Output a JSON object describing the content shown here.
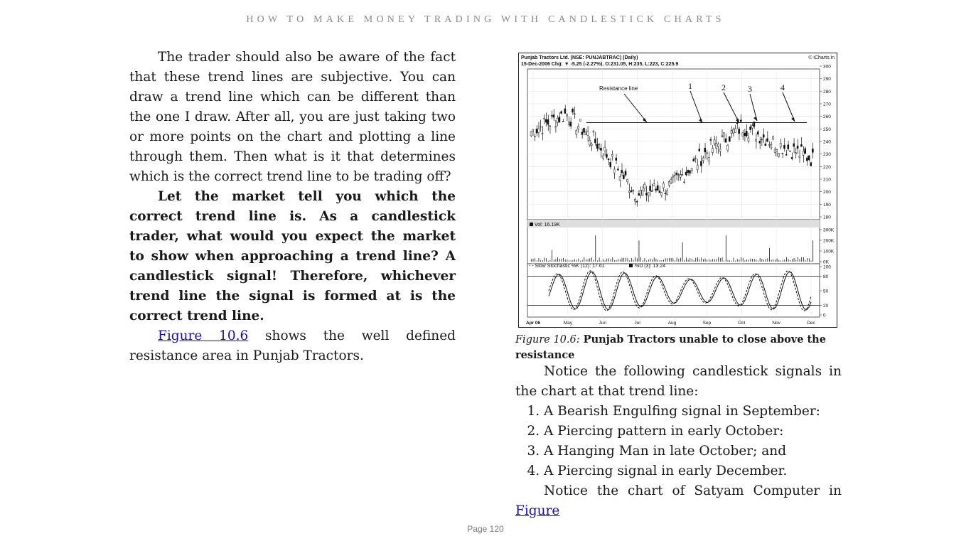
{
  "running_head": "HOW TO MAKE MONEY TRADING WITH CANDLESTICK CHARTS",
  "left_column": {
    "para1": "The trader should also be aware of the fact that these trend lines are subjective. You can draw a trend line which can be different than the one I draw. After all, you are just taking two or more points on the chart and plotting a line through them. Then what is it that determines which is the correct trend line to be trading off?",
    "para2": "Let the market tell you which the correct trend line is. As a candlestick trader, what would you expect the market to show when approaching a trend line? A candlestick signal! Therefore, whichever trend line the signal is formed at is the correct trend line.",
    "para3_link": "Figure 10.6",
    "para3_rest": " shows the well defined resistance area in Punjab Tractors."
  },
  "figure": {
    "header_line1": "Punjab Tractors Ltd. (NSE: PUNJABTRAC) (Daily)",
    "header_line2": "15-Dec-2006 Chg: ▼ -5.25 (-2.27%), O:231.05, H:235, L:223, C:225.9",
    "source": "© iCharts.in",
    "resistance_label": "Resistance line",
    "signal_numbers": [
      "1",
      "2",
      "3",
      "4"
    ],
    "volume_label": "Vol: 16.19K",
    "stochastic_label_k": "- - Slow Stochastic %K (12): 17.61",
    "stochastic_label_d": "%D (3): 13.24",
    "x_ticks": [
      "Apr 06",
      "May",
      "Jun",
      "Jul",
      "Aug",
      "Sep",
      "Oct",
      "Nov",
      "Dec"
    ],
    "price_ticks": [
      "300",
      "290",
      "280",
      "270",
      "260",
      "250",
      "240",
      "230",
      "220",
      "210",
      "200",
      "190",
      "180"
    ],
    "volume_ticks": [
      "300K",
      "200K",
      "100K",
      "0K"
    ],
    "stoch_ticks": [
      "100",
      "80",
      "50",
      "20",
      "0"
    ]
  },
  "chart_data": {
    "type": "line",
    "title": "Punjab Tractors Ltd. (NSE: PUNJABTRAC) (Daily)",
    "x": [
      "Apr 06",
      "May",
      "Jun",
      "Jul",
      "Aug",
      "Sep",
      "Oct",
      "Nov",
      "Dec"
    ],
    "series": [
      {
        "name": "Price",
        "values": [
          248,
          262,
          235,
          198,
          205,
          232,
          252,
          238,
          226
        ]
      }
    ],
    "resistance_level": 255,
    "ylim": [
      180,
      300
    ],
    "volume_ylim": [
      0,
      300000
    ],
    "stochastic_ylim": [
      0,
      100
    ],
    "stochastic_bands": [
      20,
      80
    ]
  },
  "caption": {
    "label": "Figure 10.6:",
    "text": " Punjab Tractors unable to close above the resistance"
  },
  "right_column": {
    "intro": "Notice the following candlestick signals in the chart at that trend line:",
    "list": [
      "A Bearish Engulfing signal in September:",
      "A Piercing pattern in early October:",
      "A Hanging Man in late October; and",
      "A Piercing signal in early December."
    ],
    "closing_text": "Notice the chart of Satyam Computer in ",
    "closing_link": "Figure"
  },
  "page_number": "Page 120"
}
